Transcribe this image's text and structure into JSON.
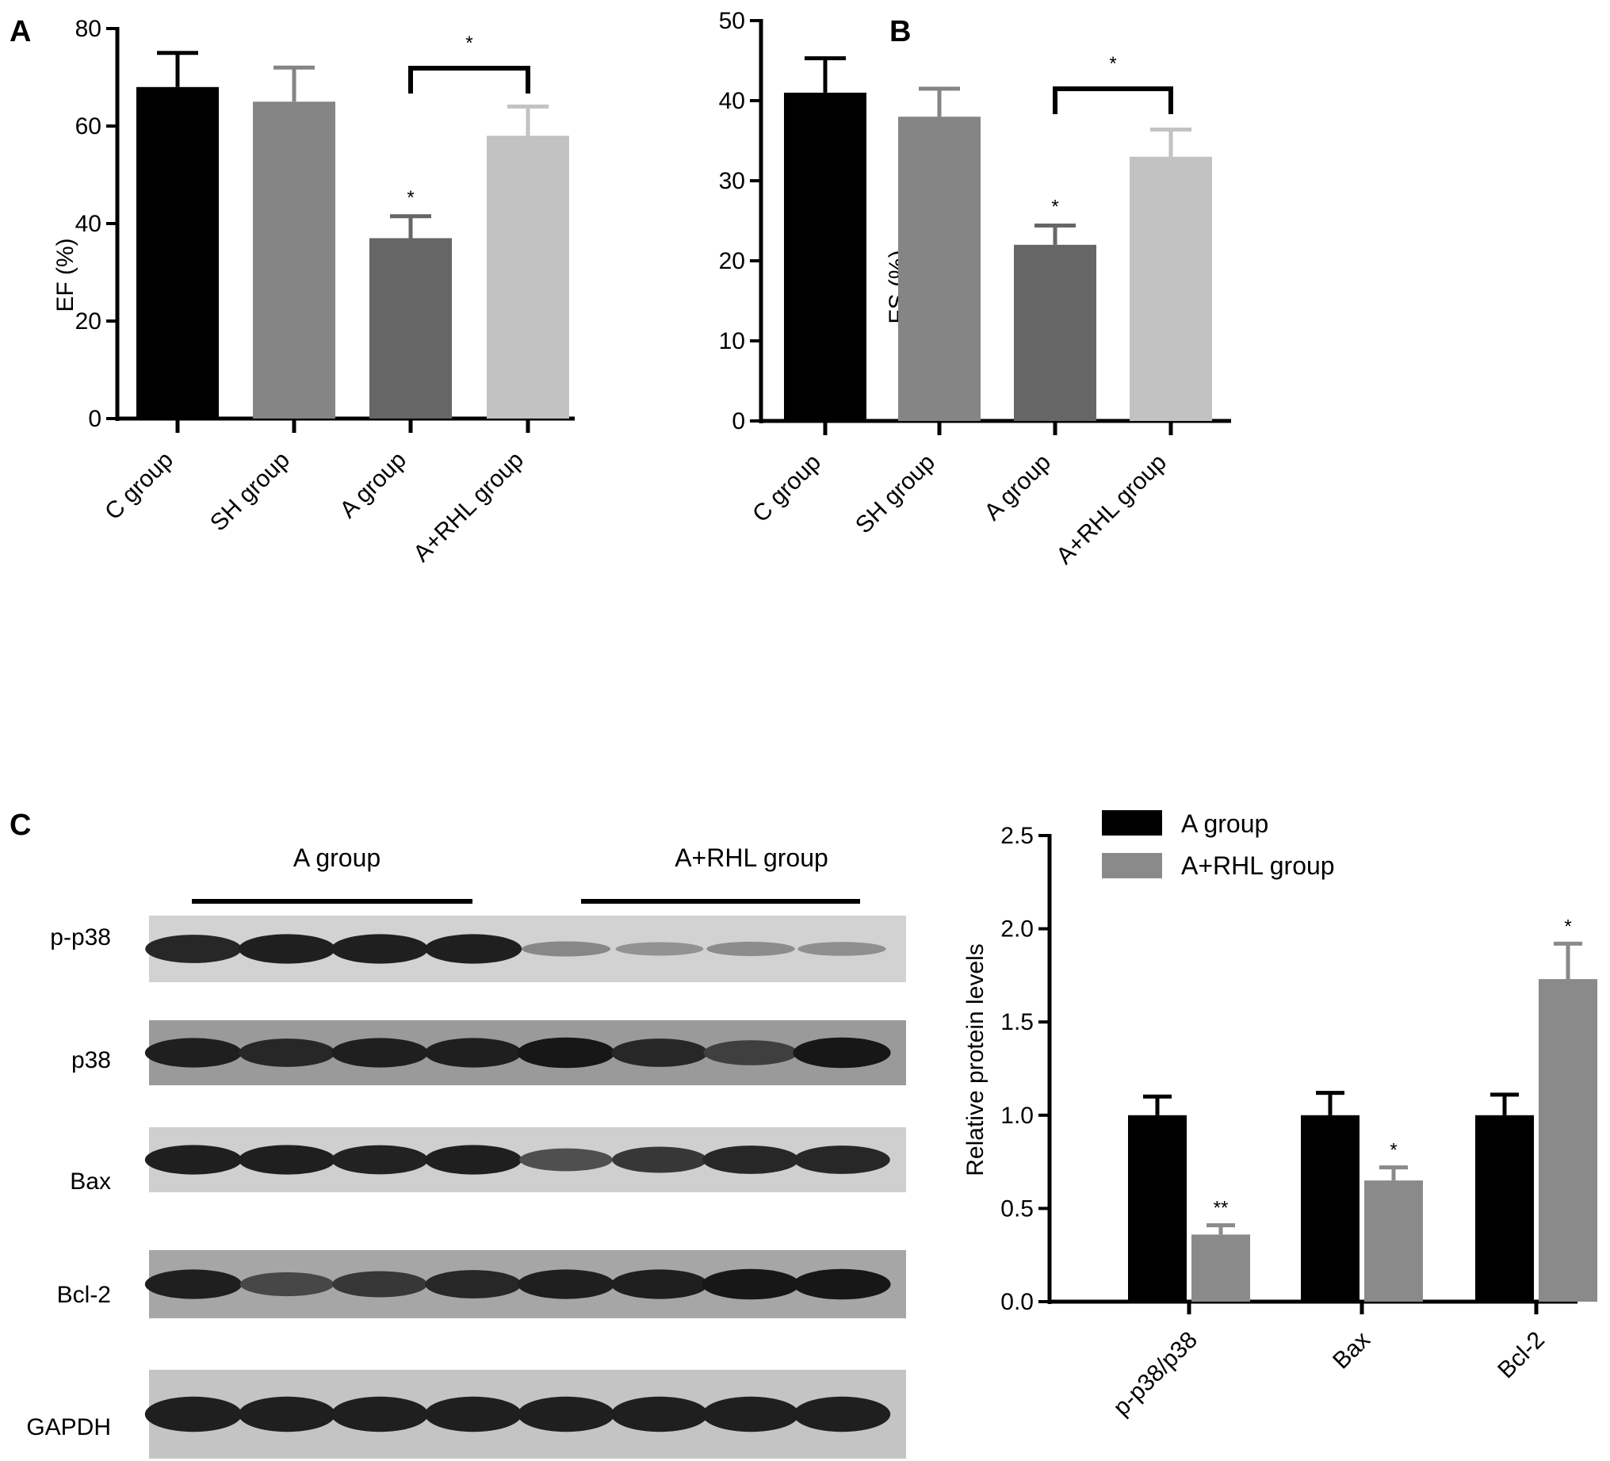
{
  "panels": {
    "a": {
      "label": "A"
    },
    "b": {
      "label": "B"
    },
    "c": {
      "label": "C"
    }
  },
  "colors": {
    "c_group": "#000000",
    "sh_group": "#858585",
    "a_group": "#666666",
    "a_rhl_group": "#c2c2c2",
    "blot_a_group": "#000000",
    "blot_a_rhl_group": "#8a8a8a"
  },
  "chart_data": [
    {
      "panel": "A",
      "type": "bar",
      "categories": [
        "C group",
        "SH group",
        "A group",
        "A+RHL group"
      ],
      "values": [
        68,
        65,
        37,
        58
      ],
      "errors": [
        7,
        7,
        4.5,
        6
      ],
      "value_annotations": [
        "",
        "",
        "*",
        ""
      ],
      "comparison": {
        "from": "A group",
        "to": "A+RHL group",
        "label": "*"
      },
      "title": "",
      "xlabel": "",
      "ylabel": "EF (%)",
      "ylim": [
        0,
        80
      ],
      "yticks": [
        0,
        20,
        40,
        60,
        80
      ],
      "grid": false
    },
    {
      "panel": "B",
      "type": "bar",
      "categories": [
        "C group",
        "SH group",
        "A group",
        "A+RHL group"
      ],
      "values": [
        41,
        38,
        22,
        33
      ],
      "errors": [
        4.3,
        3.5,
        2.4,
        3.4
      ],
      "value_annotations": [
        "",
        "",
        "*",
        ""
      ],
      "comparison": {
        "from": "A group",
        "to": "A+RHL group",
        "label": "*"
      },
      "title": "",
      "xlabel": "",
      "ylabel": "FS (%)",
      "ylim": [
        0,
        50
      ],
      "yticks": [
        0,
        10,
        20,
        30,
        40,
        50
      ],
      "grid": false
    },
    {
      "panel": "C",
      "type": "bar",
      "categories": [
        "p-p38/p38",
        "Bax",
        "Bcl-2"
      ],
      "series": [
        {
          "name": "A group",
          "values": [
            1.0,
            1.0,
            1.0
          ],
          "errors": [
            0.1,
            0.12,
            0.11
          ],
          "annotations": [
            "",
            "",
            ""
          ]
        },
        {
          "name": "A+RHL group",
          "values": [
            0.36,
            0.65,
            1.73
          ],
          "errors": [
            0.05,
            0.07,
            0.19
          ],
          "annotations": [
            "**",
            "*",
            "*"
          ]
        }
      ],
      "title": "",
      "xlabel": "",
      "ylabel": "Relative protein levels",
      "ylim": [
        0,
        2.5
      ],
      "yticks": [
        "0.0",
        "0.5",
        "1.0",
        "1.5",
        "2.0",
        "2.5"
      ],
      "legend_position": "top-left",
      "grid": false
    }
  ],
  "western_blot": {
    "group_labels": [
      "A group",
      "A+RHL group"
    ],
    "lanes_per_group": 4,
    "rows": [
      {
        "label": "p-p38",
        "intensities": [
          0.85,
          0.9,
          0.9,
          0.9,
          0.25,
          0.18,
          0.22,
          0.2
        ]
      },
      {
        "label": "p38",
        "intensities": [
          0.9,
          0.85,
          0.9,
          0.9,
          0.95,
          0.85,
          0.7,
          0.95
        ]
      },
      {
        "label": "Bax",
        "intensities": [
          0.9,
          0.9,
          0.88,
          0.9,
          0.6,
          0.75,
          0.85,
          0.85
        ]
      },
      {
        "label": "Bcl-2",
        "intensities": [
          0.9,
          0.65,
          0.75,
          0.85,
          0.9,
          0.9,
          0.95,
          0.95
        ]
      },
      {
        "label": "GAPDH",
        "intensities": [
          0.9,
          0.9,
          0.9,
          0.9,
          0.9,
          0.9,
          0.9,
          0.9
        ]
      }
    ]
  }
}
